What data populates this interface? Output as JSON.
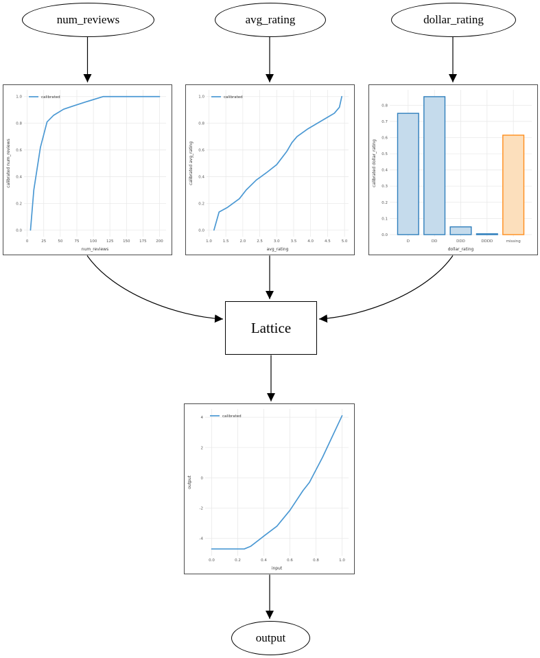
{
  "diagram": {
    "nodes": {
      "num_reviews": {
        "label": "num_reviews"
      },
      "avg_rating": {
        "label": "avg_rating"
      },
      "dollar_rating": {
        "label": "dollar_rating"
      },
      "lattice": {
        "label": "Lattice"
      },
      "output": {
        "label": "output"
      }
    },
    "edges": [
      {
        "from": "num_reviews",
        "to": "num_reviews_calibrator"
      },
      {
        "from": "avg_rating",
        "to": "avg_rating_calibrator"
      },
      {
        "from": "dollar_rating",
        "to": "dollar_rating_calibrator"
      },
      {
        "from": "num_reviews_calibrator",
        "to": "lattice"
      },
      {
        "from": "avg_rating_calibrator",
        "to": "lattice"
      },
      {
        "from": "dollar_rating_calibrator",
        "to": "lattice"
      },
      {
        "from": "lattice",
        "to": "output_calibrator"
      },
      {
        "from": "output_calibrator",
        "to": "output"
      }
    ]
  },
  "colors": {
    "line_blue": "#4a98d3",
    "bar_blue_edge": "#2e7ebc",
    "bar_blue_fill": "#c5dbec",
    "bar_orange_edge": "#ff8c1a",
    "bar_orange_fill": "#fcdfbc",
    "grid": "#e9e9e9",
    "tick_text": "#555555",
    "label_text": "#333333",
    "edge_black": "#000000"
  },
  "chart_data": [
    {
      "id": "num_reviews_calibrator",
      "type": "line",
      "title": "",
      "xlabel": "num_reviews",
      "ylabel": "calibrated num_reviews",
      "legend": "calibrated",
      "legend_position": "upper left",
      "grid": true,
      "xlim": [
        -4.8,
        209.8
      ],
      "ylim": [
        -0.05,
        1.05
      ],
      "xtick_vals": [
        0,
        25,
        50,
        75,
        100,
        125,
        150,
        175,
        200
      ],
      "xtick_labels": [
        "0",
        "25",
        "50",
        "75",
        "100",
        "125",
        "150",
        "175",
        "200"
      ],
      "ytick_vals": [
        0.0,
        0.2,
        0.4,
        0.6,
        0.8,
        1.0
      ],
      "ytick_labels": [
        "0.0",
        "0.2",
        "0.4",
        "0.6",
        "0.8",
        "1.0"
      ],
      "x": [
        5,
        10,
        20,
        30,
        40,
        55,
        70,
        90,
        115,
        200
      ],
      "y": [
        0.0,
        0.3,
        0.62,
        0.81,
        0.86,
        0.905,
        0.93,
        0.962,
        1.0,
        1.0
      ]
    },
    {
      "id": "avg_rating_calibrator",
      "type": "line",
      "title": "",
      "xlabel": "avg_rating",
      "ylabel": "calibrated avg_rating",
      "legend": "calibrated",
      "legend_position": "upper left",
      "grid": true,
      "xlim": [
        0.93,
        5.12
      ],
      "ylim": [
        -0.05,
        1.05
      ],
      "xtick_vals": [
        1.0,
        1.5,
        2.0,
        2.5,
        3.0,
        3.5,
        4.0,
        4.5,
        5.0
      ],
      "xtick_labels": [
        "1.0",
        "1.5",
        "2.0",
        "2.5",
        "3.0",
        "3.5",
        "4.0",
        "4.5",
        "5.0"
      ],
      "ytick_vals": [
        0.0,
        0.2,
        0.4,
        0.6,
        0.8,
        1.0
      ],
      "ytick_labels": [
        "0.0",
        "0.2",
        "0.4",
        "0.6",
        "0.8",
        "1.0"
      ],
      "x": [
        1.15,
        1.3,
        1.55,
        1.9,
        2.1,
        2.4,
        2.7,
        3.0,
        3.3,
        3.45,
        3.6,
        3.9,
        4.2,
        4.5,
        4.7,
        4.85,
        4.92
      ],
      "y": [
        0.0,
        0.135,
        0.17,
        0.235,
        0.3,
        0.375,
        0.43,
        0.49,
        0.59,
        0.655,
        0.7,
        0.755,
        0.8,
        0.845,
        0.875,
        0.92,
        1.0
      ]
    },
    {
      "id": "dollar_rating_calibrator",
      "type": "bar",
      "title": "",
      "xlabel": "dollar_rating",
      "ylabel": "calibrated dollar_rating",
      "grid": true,
      "categories": [
        "D",
        "DD",
        "DDD",
        "DDDD",
        "missing"
      ],
      "values": [
        0.75,
        0.853,
        0.048,
        0.005,
        0.615
      ],
      "bar_styles": [
        "blue",
        "blue",
        "blue",
        "blue",
        "orange"
      ],
      "xlim": [
        -0.7,
        4.7
      ],
      "ylim": [
        -0.013,
        0.895
      ],
      "ytick_vals": [
        0.0,
        0.1,
        0.2,
        0.3,
        0.4,
        0.5,
        0.6,
        0.7,
        0.8
      ],
      "ytick_labels": [
        "0.0",
        "0.1",
        "0.2",
        "0.3",
        "0.4",
        "0.5",
        "0.6",
        "0.7",
        "0.8"
      ]
    },
    {
      "id": "lattice_output",
      "type": "line",
      "title": "",
      "xlabel": "input",
      "ylabel": "output",
      "legend": "calibrated",
      "legend_position": "upper left",
      "grid": true,
      "xlim": [
        -0.05,
        1.05
      ],
      "ylim": [
        -5.15,
        4.55
      ],
      "xtick_vals": [
        0.0,
        0.2,
        0.4,
        0.6,
        0.8,
        1.0
      ],
      "xtick_labels": [
        "0.0",
        "0.2",
        "0.4",
        "0.6",
        "0.8",
        "1.0"
      ],
      "ytick_vals": [
        -4,
        -2,
        0,
        2,
        4
      ],
      "ytick_labels": [
        "-4",
        "-2",
        "0",
        "2",
        "4"
      ],
      "x": [
        0.0,
        0.25,
        0.3,
        0.4,
        0.5,
        0.6,
        0.7,
        0.75,
        0.85,
        1.0
      ],
      "y": [
        -4.7,
        -4.7,
        -4.52,
        -3.85,
        -3.2,
        -2.15,
        -0.85,
        -0.3,
        1.35,
        4.1
      ]
    }
  ]
}
